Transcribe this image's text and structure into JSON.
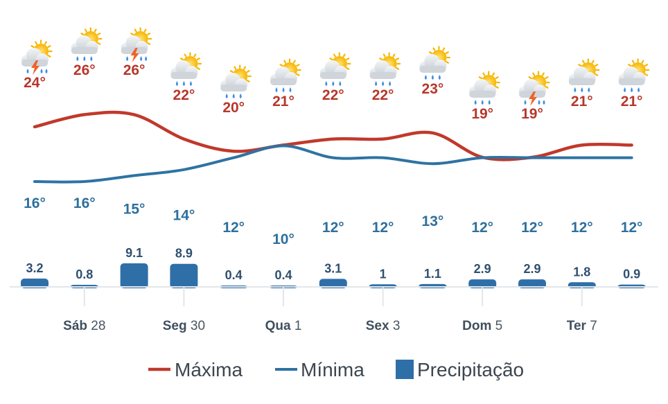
{
  "chart_data": {
    "type": "line",
    "days": [
      {
        "icon": "thunderstorm-icon",
        "max": 24,
        "min": 16,
        "precip": 3.2
      },
      {
        "icon": "rain-icon",
        "max": 26,
        "min": 16,
        "precip": 0.8
      },
      {
        "icon": "thunderstorm-icon",
        "max": 26,
        "min": 15,
        "precip": 9.1
      },
      {
        "icon": "rain-icon",
        "max": 22,
        "min": 14,
        "precip": 8.9
      },
      {
        "icon": "rain-icon",
        "max": 20,
        "min": 12,
        "precip": 0.4
      },
      {
        "icon": "rain-icon",
        "max": 21,
        "min": 10,
        "precip": 0.4
      },
      {
        "icon": "rain-icon",
        "max": 22,
        "min": 12,
        "precip": 3.1
      },
      {
        "icon": "rain-icon",
        "max": 22,
        "min": 12,
        "precip": 1
      },
      {
        "icon": "rain-icon",
        "max": 23,
        "min": 13,
        "precip": 1.1
      },
      {
        "icon": "rain-icon",
        "max": 19,
        "min": 12,
        "precip": 2.9
      },
      {
        "icon": "thunderstorm-icon",
        "max": 19,
        "min": 12,
        "precip": 2.9
      },
      {
        "icon": "rain-icon",
        "max": 21,
        "min": 12,
        "precip": 1.8
      },
      {
        "icon": "rain-icon",
        "max": 21,
        "min": 12,
        "precip": 0.9
      }
    ],
    "temp_unit": "°",
    "x_tick_labels": [
      {
        "day_index": 1,
        "name": "Sáb",
        "num": "28"
      },
      {
        "day_index": 3,
        "name": "Seg",
        "num": "30"
      },
      {
        "day_index": 5,
        "name": "Qua",
        "num": "1"
      },
      {
        "day_index": 7,
        "name": "Sex",
        "num": "3"
      },
      {
        "day_index": 9,
        "name": "Dom",
        "num": "5"
      },
      {
        "day_index": 11,
        "name": "Ter",
        "num": "7"
      }
    ],
    "series": [
      {
        "name": "Máxima",
        "key": "max",
        "color": "#c0392b"
      },
      {
        "name": "Mínima",
        "key": "min",
        "color": "#2e73a3"
      },
      {
        "name": "Precipitação",
        "key": "precip",
        "color": "#2f6fa8"
      }
    ],
    "legend_position": "bottom",
    "grid": false
  }
}
